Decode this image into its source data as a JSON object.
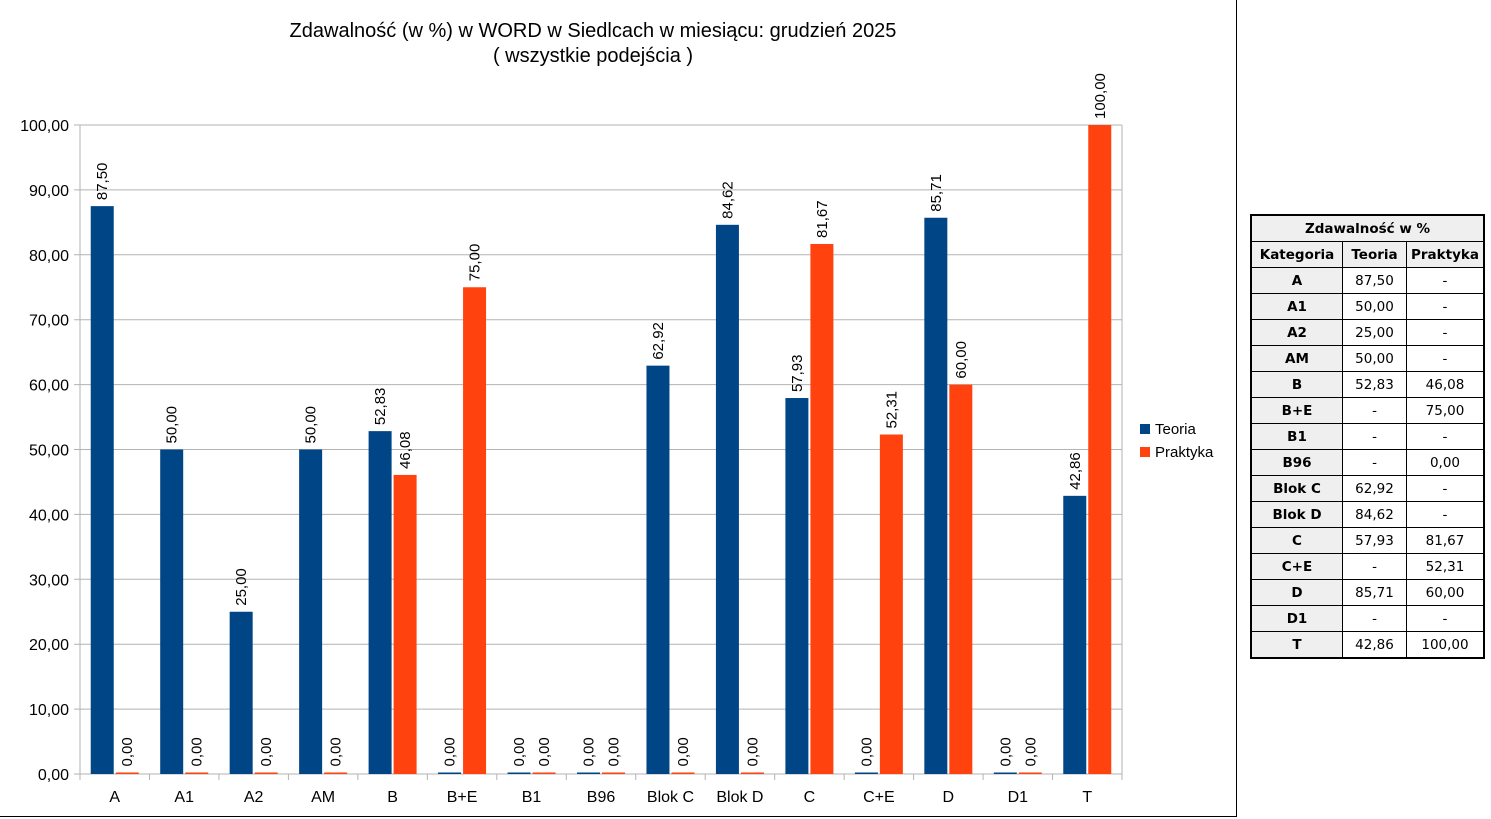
{
  "chart_data": {
    "type": "bar",
    "title": "Zdawalność (w %) w WORD w Siedlcach w miesiącu: grudzień 2025",
    "subtitle": "( wszystkie podejścia )",
    "xlabel": "",
    "ylabel": "",
    "ylim": [
      0,
      100
    ],
    "yticks": [
      "0,00",
      "10,00",
      "20,00",
      "30,00",
      "40,00",
      "50,00",
      "60,00",
      "70,00",
      "80,00",
      "90,00",
      "100,00"
    ],
    "grid": true,
    "legend_position": "right",
    "categories": [
      "A",
      "A1",
      "A2",
      "AM",
      "B",
      "B+E",
      "B1",
      "B96",
      "Blok C",
      "Blok D",
      "C",
      "C+E",
      "D",
      "D1",
      "T"
    ],
    "series": [
      {
        "name": "Teoria",
        "color": "#004586",
        "values": [
          87.5,
          50.0,
          25.0,
          50.0,
          52.83,
          0.0,
          0.0,
          0.0,
          62.92,
          84.62,
          57.93,
          0.0,
          85.71,
          0.0,
          42.86
        ],
        "labels": [
          "87,50",
          "50,00",
          "25,00",
          "50,00",
          "52,83",
          "0,00",
          "0,00",
          "0,00",
          "62,92",
          "84,62",
          "57,93",
          "0,00",
          "85,71",
          "0,00",
          "42,86"
        ]
      },
      {
        "name": "Praktyka",
        "color": "#ff420e",
        "values": [
          0.0,
          0.0,
          0.0,
          0.0,
          46.08,
          75.0,
          0.0,
          0.0,
          0.0,
          0.0,
          81.67,
          52.31,
          60.0,
          0.0,
          100.0
        ],
        "labels": [
          "0,00",
          "0,00",
          "0,00",
          "0,00",
          "46,08",
          "75,00",
          "0,00",
          "0,00",
          "0,00",
          "0,00",
          "81,67",
          "52,31",
          "60,00",
          "0,00",
          "100,00"
        ]
      }
    ]
  },
  "table": {
    "title": "Zdawalność w %",
    "headers": [
      "Kategoria",
      "Teoria",
      "Praktyka"
    ],
    "rows": [
      [
        "A",
        "87,50",
        "-"
      ],
      [
        "A1",
        "50,00",
        "-"
      ],
      [
        "A2",
        "25,00",
        "-"
      ],
      [
        "AM",
        "50,00",
        "-"
      ],
      [
        "B",
        "52,83",
        "46,08"
      ],
      [
        "B+E",
        "-",
        "75,00"
      ],
      [
        "B1",
        "-",
        "-"
      ],
      [
        "B96",
        "-",
        "0,00"
      ],
      [
        "Blok C",
        "62,92",
        "-"
      ],
      [
        "Blok D",
        "84,62",
        "-"
      ],
      [
        "C",
        "57,93",
        "81,67"
      ],
      [
        "C+E",
        "-",
        "52,31"
      ],
      [
        "D",
        "85,71",
        "60,00"
      ],
      [
        "D1",
        "-",
        "-"
      ],
      [
        "T",
        "42,86",
        "100,00"
      ]
    ]
  }
}
